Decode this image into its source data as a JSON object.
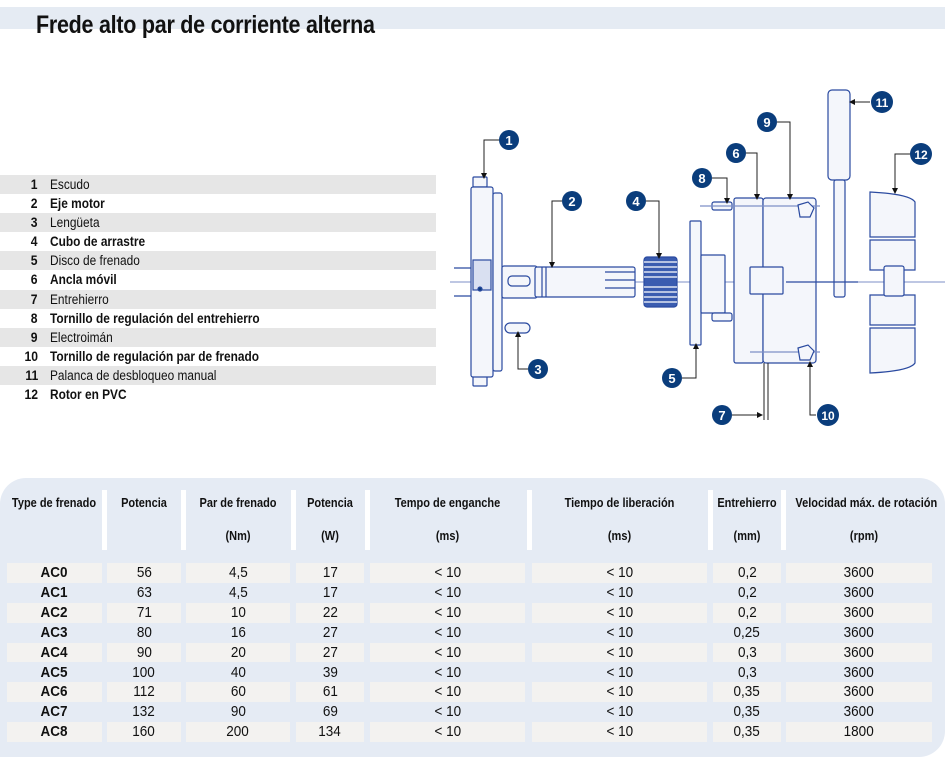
{
  "title": "Frede alto par de corriente alterna",
  "legend": [
    {
      "num": "1",
      "label": "Escudo"
    },
    {
      "num": "2",
      "label": "Eje motor"
    },
    {
      "num": "3",
      "label": "Lengüeta"
    },
    {
      "num": "4",
      "label": "Cubo de arrastre"
    },
    {
      "num": "5",
      "label": "Disco de frenado"
    },
    {
      "num": "6",
      "label": "Ancla móvil"
    },
    {
      "num": "7",
      "label": "Entrehierro"
    },
    {
      "num": "8",
      "label": "Tornillo de regulación del entrehierro"
    },
    {
      "num": "9",
      "label": "Electroimán"
    },
    {
      "num": "10",
      "label": "Tornillo de regulación par de frenado"
    },
    {
      "num": "11",
      "label": "Palanca de desbloqueo manual"
    },
    {
      "num": "12",
      "label": "Rotor en PVC"
    }
  ],
  "diagram": {
    "callouts": [
      "1",
      "2",
      "3",
      "4",
      "5",
      "6",
      "7",
      "8",
      "9",
      "10",
      "11",
      "12"
    ],
    "accent_color": "#0a3d7c",
    "line_color": "#2a4aa0"
  },
  "table": {
    "headers": [
      {
        "l1": "Type de frenado",
        "l2": ""
      },
      {
        "l1": "Potencia",
        "l2": ""
      },
      {
        "l1": "Par de frenado",
        "l2": "(Nm)"
      },
      {
        "l1": "Potencia",
        "l2": "(W)"
      },
      {
        "l1": "Tempo de enganche",
        "l2": "(ms)"
      },
      {
        "l1": "Tiempo de liberación",
        "l2": "(ms)"
      },
      {
        "l1": "Entrehierro",
        "l2": "(mm)"
      },
      {
        "l1": "Velocidad máx. de rotación",
        "l2": "(rpm)"
      }
    ],
    "rows": [
      [
        "AC0",
        "56",
        "4,5",
        "17",
        "< 10",
        "< 10",
        "0,2",
        "3600"
      ],
      [
        "AC1",
        "63",
        "4,5",
        "17",
        "< 10",
        "< 10",
        "0,2",
        "3600"
      ],
      [
        "AC2",
        "71",
        "10",
        "22",
        "< 10",
        "< 10",
        "0,2",
        "3600"
      ],
      [
        "AC3",
        "80",
        "16",
        "27",
        "< 10",
        "< 10",
        "0,25",
        "3600"
      ],
      [
        "AC4",
        "90",
        "20",
        "27",
        "< 10",
        "< 10",
        "0,3",
        "3600"
      ],
      [
        "AC5",
        "100",
        "40",
        "39",
        "< 10",
        "< 10",
        "0,3",
        "3600"
      ],
      [
        "AC6",
        "112",
        "60",
        "61",
        "< 10",
        "< 10",
        "0,35",
        "3600"
      ],
      [
        "AC7",
        "132",
        "90",
        "69",
        "< 10",
        "< 10",
        "0,35",
        "3600"
      ],
      [
        "AC8",
        "160",
        "200",
        "134",
        "< 10",
        "< 10",
        "0,35",
        "1800"
      ]
    ]
  },
  "colors": {
    "title_bar": "#e5ebf3",
    "table_panel": "#e5ebf4",
    "row_shade": "#f3f2f0",
    "legend_shade": "#e6e6e6"
  }
}
